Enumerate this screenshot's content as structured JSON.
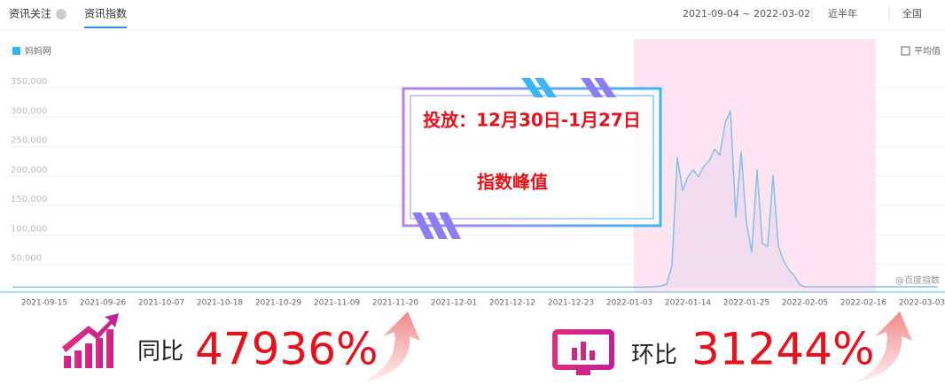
{
  "header": {
    "tabs": [
      "资讯关注",
      "资讯指数"
    ],
    "date_range": "2021-09-04 ~ 2022-03-02",
    "period": "近半年",
    "region": "全国"
  },
  "chart_data": {
    "type": "line",
    "legend": "妈妈网",
    "average_toggle": "平均值",
    "watermark": "@百度指数",
    "annotations": [
      "投放：12月30日-1月27日",
      "指数峰值"
    ],
    "categories": [
      null,
      null,
      null,
      null,
      null,
      null,
      "2021-09-15",
      null,
      null,
      null,
      null,
      null,
      null,
      null,
      null,
      null,
      null,
      "2021-09-26",
      null,
      null,
      null,
      null,
      null,
      null,
      null,
      null,
      null,
      null,
      "2021-10-07",
      null,
      null,
      null,
      null,
      null,
      null,
      null,
      null,
      null,
      null,
      "2021-10-18",
      null,
      null,
      null,
      null,
      null,
      null,
      null,
      null,
      null,
      null,
      "2021-10-29",
      null,
      null,
      null,
      null,
      null,
      null,
      null,
      null,
      null,
      null,
      "2021-11-09",
      null,
      null,
      null,
      null,
      null,
      null,
      null,
      null,
      null,
      null,
      "2021-11-20",
      null,
      null,
      null,
      null,
      null,
      null,
      null,
      null,
      null,
      null,
      "2021-12-01",
      null,
      null,
      null,
      null,
      null,
      null,
      null,
      null,
      null,
      null,
      "2021-12-12",
      null,
      null,
      null,
      null,
      null,
      null,
      null,
      null,
      null,
      null,
      "2021-12-23",
      null,
      null,
      null,
      null,
      null,
      null,
      null,
      null,
      null,
      null,
      "2022-01-03",
      null,
      null,
      null,
      null,
      null,
      null,
      null,
      null,
      null,
      null,
      "2022-01-14",
      null,
      null,
      null,
      null,
      null,
      null,
      null,
      null,
      null,
      null,
      "2022-01-25",
      null,
      null,
      null,
      null,
      null,
      null,
      null,
      null,
      null,
      null,
      "2022-02-05",
      null,
      null,
      null,
      null,
      null,
      null,
      null,
      null,
      null,
      null,
      "2022-02-16",
      null,
      null,
      null,
      null,
      null,
      null,
      null,
      null,
      null,
      null,
      "2022-03-03",
      null,
      null,
      null
    ],
    "series": [
      {
        "name": "妈妈网",
        "color": "#86c0e6",
        "values": [
          1000,
          1000,
          1000,
          1000,
          1000,
          1000,
          1000,
          1000,
          1000,
          1000,
          1000,
          1000,
          1000,
          1000,
          1000,
          1000,
          1000,
          1000,
          1000,
          1000,
          1000,
          1000,
          1000,
          1000,
          1000,
          1000,
          1000,
          1000,
          1000,
          1000,
          1000,
          1000,
          1000,
          1000,
          1000,
          1000,
          1000,
          1000,
          1000,
          1000,
          1000,
          1000,
          1000,
          1000,
          1000,
          1000,
          1000,
          1000,
          1000,
          1000,
          1000,
          1000,
          1000,
          1000,
          1000,
          1000,
          1000,
          1000,
          1000,
          1000,
          1000,
          1000,
          1000,
          1000,
          1000,
          1000,
          1000,
          1000,
          1000,
          1000,
          1000,
          1000,
          1000,
          1000,
          1000,
          1000,
          1000,
          1000,
          1000,
          1000,
          1000,
          1000,
          1000,
          1000,
          1000,
          1000,
          1000,
          1000,
          1000,
          1000,
          1000,
          1000,
          1000,
          1000,
          1000,
          1000,
          1000,
          1000,
          1000,
          1000,
          1000,
          1000,
          1000,
          1000,
          1000,
          1000,
          1000,
          1000,
          1000,
          1000,
          1000,
          1000,
          1000,
          1000,
          1000,
          1000,
          1000,
          1000,
          1000,
          1000,
          1000,
          2000,
          3000,
          6000,
          38000,
          221000,
          165000,
          188000,
          200000,
          188000,
          206000,
          215000,
          235000,
          225000,
          280000,
          300000,
          120000,
          230000,
          110000,
          60000,
          200000,
          75000,
          70000,
          190000,
          70000,
          45000,
          30000,
          20000,
          5000,
          1500,
          1500,
          1500,
          1500,
          1500,
          1500,
          1500,
          1500,
          1500,
          1500,
          1500,
          1500,
          1500,
          1500,
          1500,
          1500,
          1500,
          1500,
          1500,
          1500,
          1500,
          1500,
          1500,
          1500,
          1500,
          1500
        ]
      }
    ],
    "ylim": [
      0,
      350000
    ],
    "yticks": [
      {
        "value": 50000,
        "label": "50,000"
      },
      {
        "value": 100000,
        "label": "100,000"
      },
      {
        "value": 150000,
        "label": "150,000"
      },
      {
        "value": 200000,
        "label": "200,000"
      },
      {
        "value": 250000,
        "label": "250,000"
      },
      {
        "value": 300000,
        "label": "300,000"
      },
      {
        "value": 350000,
        "label": "350,000"
      }
    ],
    "grid": true
  },
  "footer": {
    "yoy_label": "同比",
    "yoy_value": "47936%",
    "mom_label": "环比",
    "mom_value": "31244%"
  }
}
